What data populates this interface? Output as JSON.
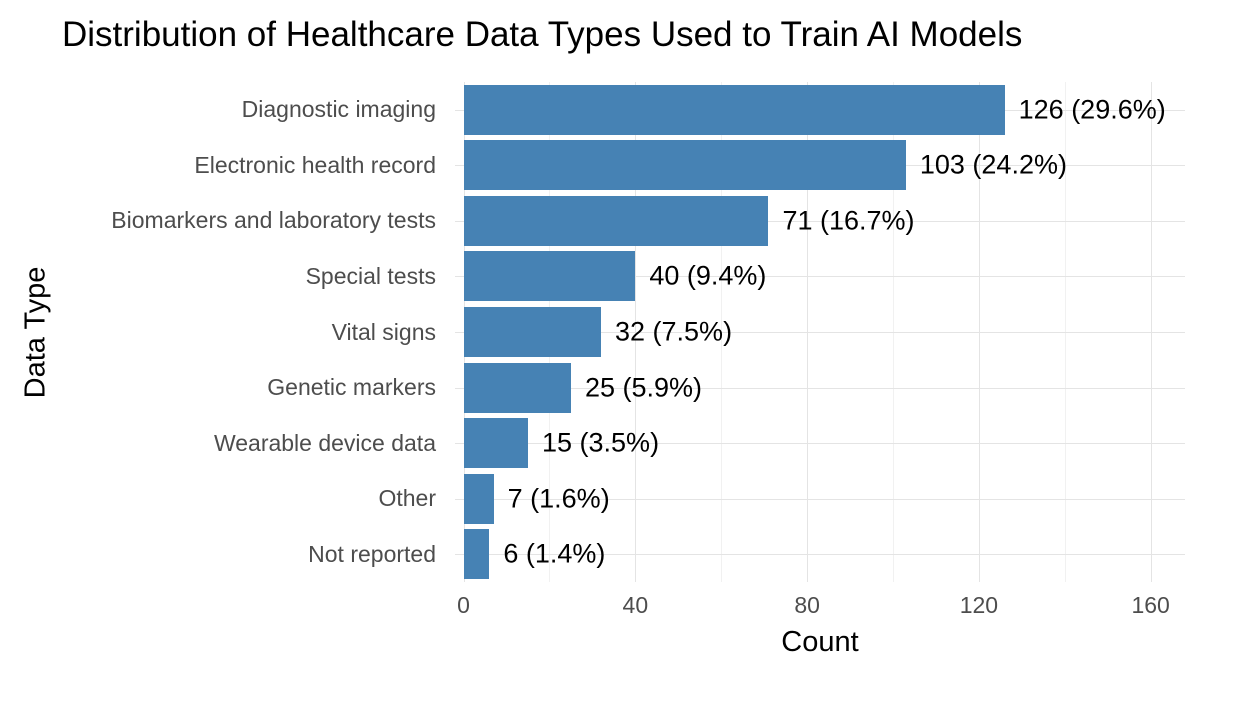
{
  "chart_data": {
    "type": "bar",
    "orientation": "horizontal",
    "title": "Distribution of Healthcare Data Types Used to Train AI Models",
    "xlabel": "Count",
    "ylabel": "Data Type",
    "categories": [
      "Diagnostic imaging",
      "Electronic health record",
      "Biomarkers and laboratory tests",
      "Special tests",
      "Vital signs",
      "Genetic markers",
      "Wearable device data",
      "Other",
      "Not reported"
    ],
    "values": [
      126,
      103,
      71,
      40,
      32,
      25,
      15,
      7,
      6
    ],
    "value_labels": [
      "126 (29.6%)",
      "103 (24.2%)",
      "71 (16.7%)",
      "40 (9.4%)",
      "32 (7.5%)",
      "25 (5.9%)",
      "15 (3.5%)",
      "7 (1.6%)",
      "6 (1.4%)"
    ],
    "x_ticks": [
      0,
      40,
      80,
      120,
      160
    ],
    "x_minor_ticks": [
      20,
      60,
      100,
      140
    ],
    "xlim": [
      -2,
      168
    ],
    "bar_start": 0,
    "grid": true,
    "legend_position": "none",
    "colors": {
      "bar_fill": "#4682B4",
      "grid_major": "#E4E4E4",
      "grid_minor": "#F1F1F1",
      "axis_text": "#4D4D4D",
      "title_text": "#000000",
      "value_label_text": "#000000",
      "background": "#FFFFFF"
    }
  }
}
